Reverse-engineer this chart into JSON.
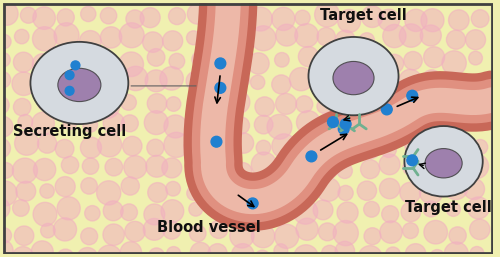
{
  "bg_color": "#f0f0b0",
  "bg_dots_color": "#f0b0c0",
  "vessel_outer_color": "#c86858",
  "vessel_inner_color": "#e09080",
  "vessel_lumen_color": "#edb8a8",
  "cell_body_color": "#d8dce0",
  "cell_nucleus_color": "#9070a0",
  "hormone_color": "#2080d0",
  "receptor_color": "#70b090",
  "border_color": "#404040",
  "text_color": "#101010",
  "label_secreting": "Secreting cell",
  "label_blood": "Blood vessel",
  "label_target1": "Target cell",
  "label_target2": "Target cell",
  "font_size_label": 10.5
}
